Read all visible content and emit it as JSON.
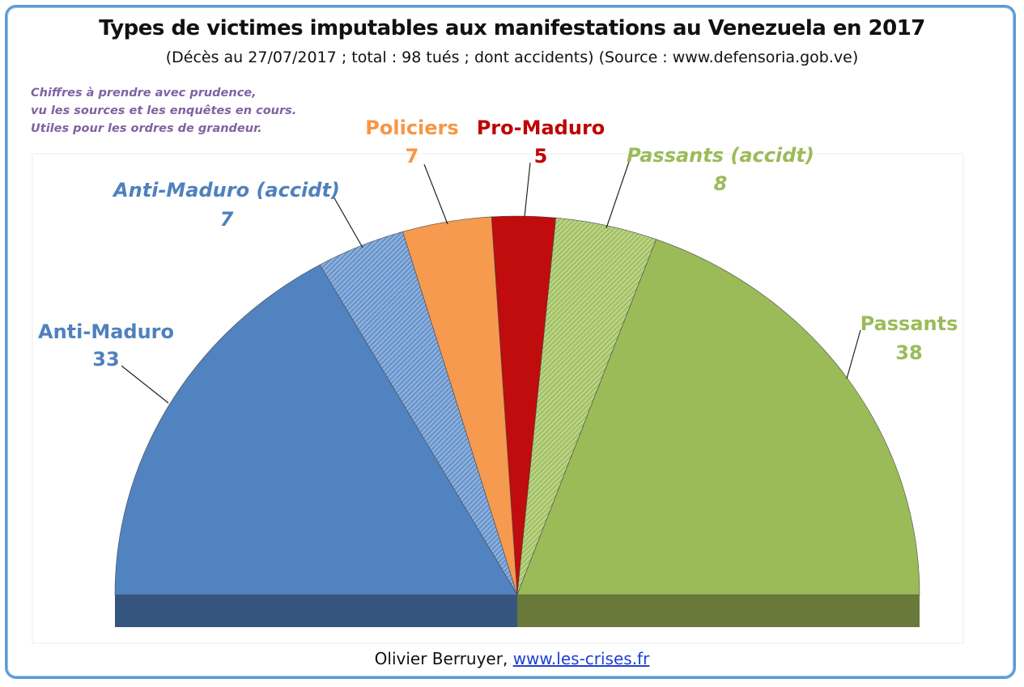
{
  "header": {
    "title": "Types de victimes imputables aux manifestations au Venezuela en 2017",
    "subtitle": "(Décès au 27/07/2017 ; total : 98 tués ; dont accidents) (Source : www.defensoria.gob.ve)"
  },
  "note": "Chiffres à prendre avec prudence,\nvu les sources et les enquêtes en cours.\nUtiles pour les ordres de grandeur.",
  "footer": {
    "author": "Olivier Berruyer, ",
    "link": "www.les-crises.fr"
  },
  "chart_data": {
    "type": "pie",
    "shape": "half-donut",
    "total": 98,
    "slices": [
      {
        "label": "Anti-Maduro",
        "value": 33,
        "color": "#5183c0",
        "label_color": "#4f81bd",
        "pattern": false,
        "italic": false
      },
      {
        "label": "Anti-Maduro (accidt)",
        "value": 7,
        "color": "#6d98cf",
        "label_color": "#4f81bd",
        "pattern": true,
        "italic": true
      },
      {
        "label": "Policiers",
        "value": 7,
        "color": "#f59a4f",
        "label_color": "#f79646",
        "pattern": false,
        "italic": false
      },
      {
        "label": "Pro-Maduro",
        "value": 5,
        "color": "#c00c0c",
        "label_color": "#c00000",
        "pattern": false,
        "italic": false
      },
      {
        "label": "Passants (accidt)",
        "value": 8,
        "color": "#a9c86b",
        "label_color": "#9bbb59",
        "pattern": true,
        "italic": true
      },
      {
        "label": "Passants",
        "value": 38,
        "color": "#9bbb59",
        "label_color": "#9bbb59",
        "pattern": false,
        "italic": false
      }
    ],
    "base_colors": {
      "left": "#35557f",
      "right": "#68793a"
    }
  }
}
